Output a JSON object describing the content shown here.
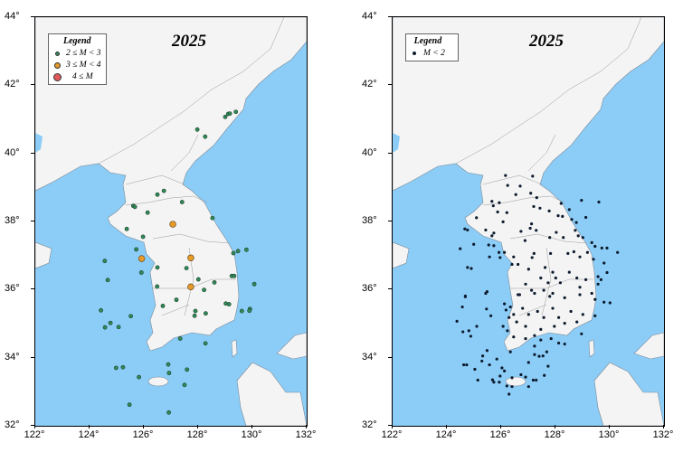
{
  "maps": [
    {
      "title": "2025",
      "legend": {
        "heading": "Legend",
        "entries": [
          {
            "label": "2 ≤ M < 3",
            "color": "#2e8b57"
          },
          {
            "label": "3 ≤ M < 4",
            "color": "#e69a28"
          },
          {
            "label": "4 ≤ M",
            "color": "#e05a5a"
          }
        ]
      }
    },
    {
      "title": "2025",
      "legend": {
        "heading": "Legend",
        "entries": [
          {
            "label": "M < 2",
            "color": "#0d1b2e"
          }
        ]
      }
    }
  ],
  "axes": {
    "x_ticks": [
      "122°",
      "124°",
      "126°",
      "128°",
      "130°",
      "132°"
    ],
    "y_ticks": [
      "44°",
      "42°",
      "40°",
      "38°",
      "36°",
      "34°",
      "32°"
    ],
    "lon_range": [
      122,
      132
    ],
    "lat_range": [
      32,
      44
    ]
  },
  "colors": {
    "sea": "#8ccdf7",
    "land": "#f4f4f4",
    "border": "#999999"
  },
  "events": {
    "m2to3": [
      [
        129.0,
        41.07
      ],
      [
        129.11,
        41.16
      ],
      [
        129.17,
        41.17
      ],
      [
        129.39,
        41.22
      ],
      [
        127.97,
        40.7
      ],
      [
        128.26,
        40.49
      ],
      [
        126.5,
        38.79
      ],
      [
        126.74,
        38.9
      ],
      [
        127.41,
        38.57
      ],
      [
        125.61,
        38.46
      ],
      [
        125.67,
        38.43
      ],
      [
        126.14,
        38.26
      ],
      [
        125.37,
        37.78
      ],
      [
        125.97,
        37.55
      ],
      [
        128.53,
        38.1
      ],
      [
        125.72,
        37.18
      ],
      [
        124.56,
        36.84
      ],
      [
        129.3,
        37.07
      ],
      [
        129.47,
        37.13
      ],
      [
        129.78,
        37.17
      ],
      [
        126.5,
        36.65
      ],
      [
        125.91,
        36.5
      ],
      [
        127.57,
        36.63
      ],
      [
        124.67,
        36.28
      ],
      [
        129.24,
        36.4
      ],
      [
        129.33,
        36.4
      ],
      [
        128.01,
        36.3
      ],
      [
        128.6,
        36.21
      ],
      [
        130.07,
        36.16
      ],
      [
        126.49,
        36.09
      ],
      [
        128.22,
        35.99
      ],
      [
        127.2,
        35.7
      ],
      [
        124.42,
        35.39
      ],
      [
        126.7,
        35.52
      ],
      [
        129.02,
        35.59
      ],
      [
        129.14,
        35.57
      ],
      [
        127.9,
        35.37
      ],
      [
        127.87,
        35.23
      ],
      [
        128.28,
        35.3
      ],
      [
        129.61,
        35.37
      ],
      [
        129.91,
        35.43
      ],
      [
        129.89,
        35.38
      ],
      [
        125.52,
        35.22
      ],
      [
        124.77,
        35.02
      ],
      [
        124.57,
        34.89
      ],
      [
        125.07,
        34.9
      ],
      [
        127.34,
        34.56
      ],
      [
        128.27,
        34.42
      ],
      [
        124.98,
        33.7
      ],
      [
        125.23,
        33.72
      ],
      [
        126.9,
        33.8
      ],
      [
        126.93,
        33.55
      ],
      [
        127.59,
        33.65
      ],
      [
        125.82,
        33.43
      ],
      [
        127.5,
        33.2
      ],
      [
        125.47,
        32.62
      ],
      [
        126.92,
        32.39
      ]
    ],
    "m3to4": [
      [
        127.07,
        37.92
      ],
      [
        125.92,
        36.91
      ],
      [
        127.73,
        36.93
      ],
      [
        127.73,
        36.08
      ]
    ],
    "m4plus": [],
    "mlt2": [
      [
        126.16,
        39.35
      ],
      [
        127.16,
        39.33
      ],
      [
        126.24,
        39.06
      ],
      [
        126.7,
        39.04
      ],
      [
        126.54,
        38.79
      ],
      [
        127.09,
        38.83
      ],
      [
        127.31,
        38.7
      ],
      [
        125.66,
        38.59
      ],
      [
        125.93,
        38.55
      ],
      [
        125.71,
        38.46
      ],
      [
        126.21,
        38.26
      ],
      [
        125.87,
        38.28
      ],
      [
        127.2,
        38.44
      ],
      [
        127.43,
        38.39
      ],
      [
        127.77,
        38.31
      ],
      [
        128.21,
        38.53
      ],
      [
        128.1,
        38.17
      ],
      [
        128.26,
        38.15
      ],
      [
        128.51,
        38.35
      ],
      [
        128.6,
        38.06
      ],
      [
        128.77,
        37.97
      ],
      [
        128.96,
        38.62
      ],
      [
        129.6,
        38.57
      ],
      [
        129.12,
        38.12
      ],
      [
        126.07,
        37.99
      ],
      [
        125.09,
        38.11
      ],
      [
        124.66,
        37.78
      ],
      [
        124.76,
        37.75
      ],
      [
        125.43,
        37.75
      ],
      [
        125.73,
        37.66
      ],
      [
        125.66,
        37.58
      ],
      [
        127.12,
        37.93
      ],
      [
        127.07,
        37.8
      ],
      [
        126.73,
        37.71
      ],
      [
        127.29,
        37.74
      ],
      [
        128.03,
        37.68
      ],
      [
        126.88,
        37.44
      ],
      [
        127.79,
        37.53
      ],
      [
        128.29,
        37.53
      ],
      [
        128.73,
        37.74
      ],
      [
        128.84,
        37.58
      ],
      [
        129.01,
        37.53
      ],
      [
        129.34,
        37.38
      ],
      [
        129.46,
        37.27
      ],
      [
        129.71,
        37.22
      ],
      [
        129.9,
        37.22
      ],
      [
        130.29,
        37.09
      ],
      [
        124.49,
        37.2
      ],
      [
        124.99,
        37.33
      ],
      [
        125.54,
        37.31
      ],
      [
        125.73,
        37.29
      ],
      [
        125.92,
        37.09
      ],
      [
        125.96,
        36.94
      ],
      [
        126.12,
        37.09
      ],
      [
        125.57,
        36.96
      ],
      [
        126.46,
        36.96
      ],
      [
        127.21,
        37.06
      ],
      [
        127.14,
        36.94
      ],
      [
        127.82,
        37.06
      ],
      [
        128.46,
        37.06
      ],
      [
        128.68,
        37.11
      ],
      [
        128.9,
        36.96
      ],
      [
        129.18,
        37.09
      ],
      [
        129.4,
        36.89
      ],
      [
        129.79,
        36.78
      ],
      [
        129.9,
        36.5
      ],
      [
        124.76,
        36.65
      ],
      [
        124.9,
        36.62
      ],
      [
        125.48,
        35.94
      ],
      [
        124.68,
        35.81
      ],
      [
        126.4,
        36.74
      ],
      [
        126.62,
        36.74
      ],
      [
        127.01,
        36.6
      ],
      [
        127.62,
        36.65
      ],
      [
        127.9,
        36.51
      ],
      [
        128.01,
        36.34
      ],
      [
        127.73,
        36.2
      ],
      [
        128.18,
        36.2
      ],
      [
        127.46,
        36.34
      ],
      [
        126.9,
        36.16
      ],
      [
        127.12,
        35.98
      ],
      [
        126.68,
        35.85
      ],
      [
        127.57,
        35.98
      ],
      [
        127.9,
        35.89
      ],
      [
        128.51,
        36.51
      ],
      [
        128.79,
        36.34
      ],
      [
        129.12,
        36.29
      ],
      [
        129.57,
        36.38
      ],
      [
        129.68,
        36.29
      ],
      [
        128.9,
        36.07
      ],
      [
        129.34,
        35.89
      ],
      [
        129.57,
        36.16
      ],
      [
        126.62,
        35.85
      ],
      [
        127.23,
        35.89
      ],
      [
        127.79,
        35.8
      ],
      [
        128.34,
        35.76
      ],
      [
        128.9,
        35.85
      ],
      [
        129.46,
        35.71
      ],
      [
        129.79,
        35.63
      ],
      [
        125.43,
        35.89
      ],
      [
        124.68,
        35.79
      ],
      [
        124.57,
        35.49
      ],
      [
        124.37,
        35.07
      ],
      [
        124.59,
        34.76
      ],
      [
        124.81,
        34.79
      ],
      [
        124.88,
        34.63
      ],
      [
        125.1,
        34.92
      ],
      [
        125.46,
        35.43
      ],
      [
        125.62,
        35.23
      ],
      [
        126.12,
        35.58
      ],
      [
        126.18,
        35.4
      ],
      [
        126.34,
        35.49
      ],
      [
        126.46,
        35.27
      ],
      [
        126.29,
        35.18
      ],
      [
        126.57,
        35.05
      ],
      [
        126.79,
        35.45
      ],
      [
        127.01,
        35.27
      ],
      [
        127.34,
        35.36
      ],
      [
        127.57,
        35.18
      ],
      [
        127.9,
        35.45
      ],
      [
        128.12,
        35.18
      ],
      [
        128.57,
        35.36
      ],
      [
        129.01,
        35.27
      ],
      [
        129.46,
        35.23
      ],
      [
        130.01,
        35.61
      ],
      [
        126.9,
        34.92
      ],
      [
        127.46,
        34.83
      ],
      [
        127.96,
        34.92
      ],
      [
        128.34,
        35.01
      ],
      [
        128.79,
        35.05
      ],
      [
        126.07,
        34.92
      ],
      [
        126.23,
        34.79
      ],
      [
        126.46,
        34.61
      ],
      [
        126.9,
        34.56
      ],
      [
        127.23,
        34.65
      ],
      [
        127.46,
        34.52
      ],
      [
        127.84,
        34.56
      ],
      [
        128.12,
        34.43
      ],
      [
        128.34,
        34.4
      ],
      [
        128.96,
        34.7
      ],
      [
        127.23,
        34.34
      ],
      [
        126.34,
        34.17
      ],
      [
        125.48,
        34.21
      ],
      [
        125.32,
        34.05
      ],
      [
        125.29,
        33.9
      ],
      [
        125.84,
        33.96
      ],
      [
        124.62,
        33.79
      ],
      [
        124.73,
        33.79
      ],
      [
        125.03,
        33.66
      ],
      [
        125.57,
        33.79
      ],
      [
        126.03,
        33.7
      ],
      [
        126.12,
        33.61
      ],
      [
        125.96,
        33.46
      ],
      [
        125.14,
        33.34
      ],
      [
        125.68,
        33.35
      ],
      [
        125.73,
        33.28
      ],
      [
        125.93,
        33.28
      ],
      [
        126.4,
        33.41
      ],
      [
        126.73,
        33.5
      ],
      [
        126.9,
        33.43
      ],
      [
        127.18,
        33.34
      ],
      [
        127.29,
        33.34
      ],
      [
        127.59,
        33.48
      ],
      [
        127.73,
        33.75
      ],
      [
        127.01,
        33.86
      ],
      [
        127.23,
        34.09
      ],
      [
        127.4,
        34.04
      ],
      [
        127.54,
        34.05
      ],
      [
        127.68,
        34.17
      ],
      [
        126.21,
        33.17
      ],
      [
        126.4,
        33.15
      ],
      [
        127.01,
        33.15
      ],
      [
        126.29,
        32.93
      ]
    ]
  }
}
